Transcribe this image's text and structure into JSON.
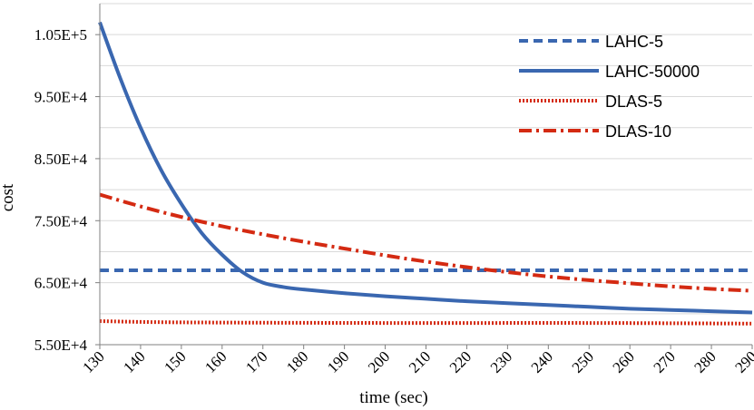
{
  "chart_data": {
    "type": "line",
    "title": "",
    "xlabel": "time (sec)",
    "ylabel": "cost",
    "xlim": [
      130,
      290
    ],
    "ylim": [
      55000,
      110000
    ],
    "x_ticks": [
      130,
      140,
      150,
      160,
      170,
      180,
      190,
      200,
      210,
      220,
      230,
      240,
      250,
      260,
      270,
      280,
      290
    ],
    "x_tick_labels": [
      "130",
      "140",
      "150",
      "160",
      "170",
      "180",
      "190",
      "200",
      "210",
      "220",
      "230",
      "240",
      "250",
      "260",
      "270",
      "280",
      "290"
    ],
    "y_ticks": [
      55000,
      65000,
      75000,
      85000,
      95000,
      105000
    ],
    "y_tick_labels": [
      "5.50E+4",
      "6.50E+4",
      "7.50E+4",
      "8.50E+4",
      "9.50E+4",
      "1.05E+5"
    ],
    "grid": "horizontal",
    "legend_position": "top-right",
    "series": [
      {
        "name": "LAHC-5",
        "color": "#3a67b0",
        "style": "dashed",
        "x": [
          130,
          290
        ],
        "y": [
          67000,
          67000
        ]
      },
      {
        "name": "LAHC-50000",
        "color": "#3a67b0",
        "style": "solid",
        "x": [
          130,
          135,
          140,
          145,
          150,
          155,
          160,
          165,
          170,
          175,
          180,
          190,
          200,
          210,
          220,
          230,
          240,
          250,
          260,
          270,
          280,
          290
        ],
        "y": [
          107000,
          98000,
          90000,
          83200,
          77700,
          73000,
          69500,
          66700,
          65000,
          64300,
          63900,
          63300,
          62800,
          62400,
          62000,
          61700,
          61400,
          61100,
          60800,
          60600,
          60400,
          60200
        ]
      },
      {
        "name": "DLAS-5",
        "color": "#d42a12",
        "style": "dotted",
        "x": [
          130,
          150,
          200,
          250,
          290
        ],
        "y": [
          58800,
          58600,
          58500,
          58500,
          58400
        ]
      },
      {
        "name": "DLAS-10",
        "color": "#d42a12",
        "style": "dash-dot",
        "x": [
          130,
          140,
          150,
          160,
          170,
          180,
          190,
          200,
          210,
          220,
          230,
          240,
          250,
          260,
          270,
          280,
          290
        ],
        "y": [
          79200,
          77300,
          75600,
          74100,
          72800,
          71600,
          70500,
          69400,
          68400,
          67500,
          66700,
          66000,
          65400,
          64900,
          64400,
          64000,
          63700
        ]
      }
    ]
  }
}
